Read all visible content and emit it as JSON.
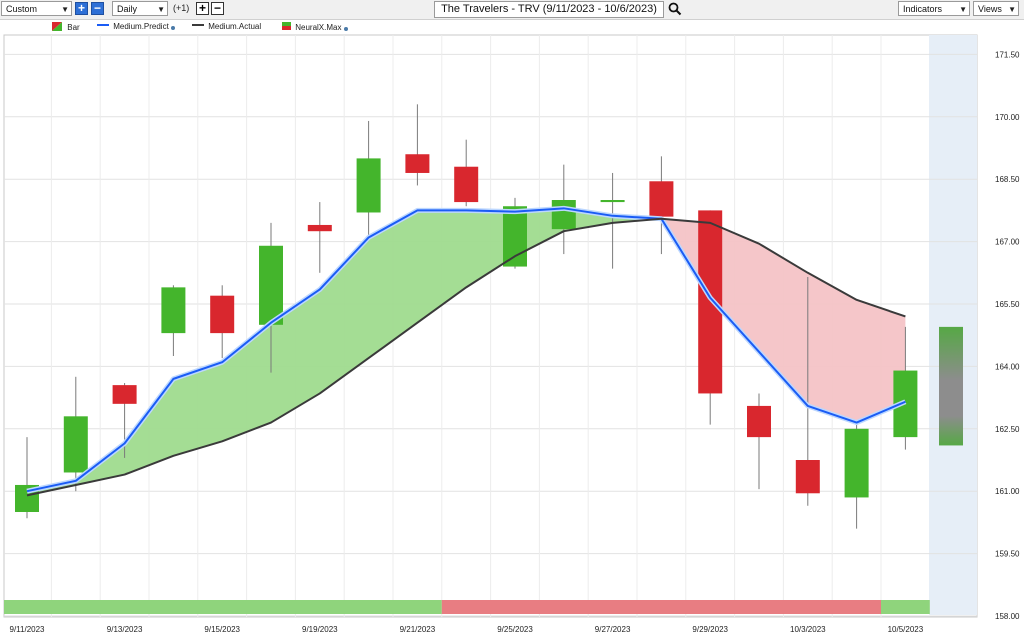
{
  "toolbar": {
    "preset": "Custom",
    "interval": "Daily",
    "offset": "(+1)",
    "title": "The Travelers - TRV (9/11/2023 - 10/6/2023)",
    "indicators": "Indicators",
    "views": "Views"
  },
  "legend": {
    "bar": "Bar",
    "predict": "Medium.Predict",
    "actual": "Medium.Actual",
    "neural": "NeuralX.Max"
  },
  "colors": {
    "up": "#44b52c",
    "down": "#d9272e",
    "predict": "#1a5cf5",
    "actual": "#3a3a3a",
    "fill_bull": "#9fdb8e",
    "fill_bear": "#f4c3c6",
    "forecast_bg": "#e6eef7"
  },
  "chart_data": {
    "type": "candlestick",
    "y_ticks": [
      "158.00",
      "159.50",
      "161.00",
      "162.50",
      "164.00",
      "165.50",
      "167.00",
      "168.50",
      "170.00",
      "171.50"
    ],
    "ylim": [
      158.0,
      172.0
    ],
    "x_tick_labels": [
      {
        "label": "9/11/2023",
        "index": 0
      },
      {
        "label": "9/13/2023",
        "index": 2
      },
      {
        "label": "9/15/2023",
        "index": 4
      },
      {
        "label": "9/19/2023",
        "index": 6
      },
      {
        "label": "9/21/2023",
        "index": 8
      },
      {
        "label": "9/25/2023",
        "index": 10
      },
      {
        "label": "9/27/2023",
        "index": 12
      },
      {
        "label": "9/29/2023",
        "index": 14
      },
      {
        "label": "10/3/2023",
        "index": 16
      },
      {
        "label": "10/5/2023",
        "index": 18
      }
    ],
    "candles": [
      {
        "date": "9/11/2023",
        "open": 160.5,
        "high": 162.3,
        "low": 160.35,
        "close": 161.15
      },
      {
        "date": "9/12/2023",
        "open": 161.45,
        "high": 163.75,
        "low": 161.0,
        "close": 162.8
      },
      {
        "date": "9/13/2023",
        "open": 163.55,
        "high": 163.6,
        "low": 161.8,
        "close": 163.1
      },
      {
        "date": "9/14/2023",
        "open": 164.8,
        "high": 165.95,
        "low": 164.25,
        "close": 165.9
      },
      {
        "date": "9/15/2023",
        "open": 165.7,
        "high": 165.95,
        "low": 164.2,
        "close": 164.8
      },
      {
        "date": "9/18/2023",
        "open": 165.0,
        "high": 167.45,
        "low": 163.85,
        "close": 166.9
      },
      {
        "date": "9/19/2023",
        "open": 167.4,
        "high": 167.95,
        "low": 166.25,
        "close": 167.25
      },
      {
        "date": "9/20/2023",
        "open": 167.7,
        "high": 169.9,
        "low": 167.15,
        "close": 169.0
      },
      {
        "date": "9/21/2023",
        "open": 169.1,
        "high": 170.3,
        "low": 168.35,
        "close": 168.65
      },
      {
        "date": "9/22/2023",
        "open": 168.8,
        "high": 169.45,
        "low": 167.85,
        "close": 167.95
      },
      {
        "date": "9/25/2023",
        "open": 166.4,
        "high": 168.05,
        "low": 166.35,
        "close": 167.85
      },
      {
        "date": "9/26/2023",
        "open": 167.3,
        "high": 168.85,
        "low": 166.7,
        "close": 168.0
      },
      {
        "date": "9/27/2023",
        "open": 167.95,
        "high": 168.65,
        "low": 166.35,
        "close": 168.0
      },
      {
        "date": "9/28/2023",
        "open": 168.45,
        "high": 169.05,
        "low": 166.7,
        "close": 167.6
      },
      {
        "date": "9/29/2023",
        "open": 167.75,
        "high": 167.75,
        "low": 162.6,
        "close": 163.35
      },
      {
        "date": "10/2/2023",
        "open": 163.05,
        "high": 163.35,
        "low": 161.05,
        "close": 162.3
      },
      {
        "date": "10/3/2023",
        "open": 161.75,
        "high": 166.15,
        "low": 160.65,
        "close": 160.95
      },
      {
        "date": "10/4/2023",
        "open": 160.85,
        "high": 162.6,
        "low": 160.1,
        "close": 162.5
      },
      {
        "date": "10/5/2023",
        "open": 162.3,
        "high": 164.95,
        "low": 162.0,
        "close": 163.9
      }
    ],
    "forecast_bar": {
      "low": 162.1,
      "high": 164.95,
      "direction": "up"
    },
    "medium_predict": [
      161.0,
      161.25,
      162.15,
      163.7,
      164.1,
      165.05,
      165.85,
      167.1,
      167.75,
      167.75,
      167.72,
      167.8,
      167.62,
      167.55,
      165.65,
      164.35,
      163.05,
      162.65,
      163.15
    ],
    "medium_actual": [
      160.9,
      161.15,
      161.4,
      161.85,
      162.2,
      162.65,
      163.35,
      164.2,
      165.05,
      165.9,
      166.65,
      167.25,
      167.45,
      167.55,
      167.45,
      166.95,
      166.25,
      165.6,
      165.2
    ],
    "neural_strip": [
      {
        "from": 0,
        "to": 8,
        "signal": "up"
      },
      {
        "from": 9,
        "to": 17,
        "signal": "down"
      },
      {
        "from": 18,
        "to": 18,
        "signal": "up"
      }
    ]
  }
}
